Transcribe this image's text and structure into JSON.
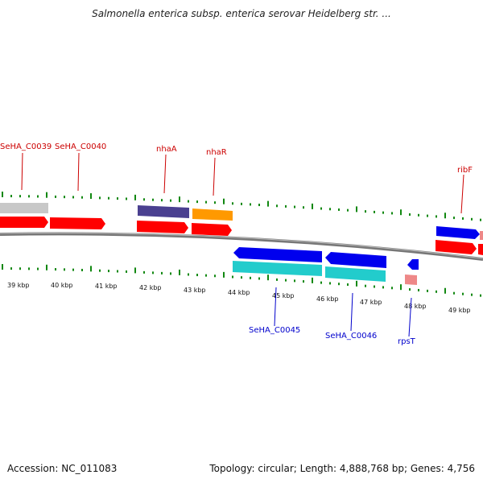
{
  "title": "Salmonella enterica subsp. enterica serovar Heidelberg str. ...",
  "footer": {
    "accession": "Accession: NC_011083",
    "stats": "Topology: circular; Length: 4,888,768 bp; Genes: 4,756"
  },
  "axis": {
    "ticks": [
      {
        "label": "39 kbp"
      },
      {
        "label": "40 kbp"
      },
      {
        "label": "41 kbp"
      },
      {
        "label": "42 kbp"
      },
      {
        "label": "43 kbp"
      },
      {
        "label": "44 kbp"
      },
      {
        "label": "45 kbp"
      },
      {
        "label": "46 kbp"
      },
      {
        "label": "47 kbp"
      },
      {
        "label": "48 kbp"
      },
      {
        "label": "49 kbp"
      }
    ]
  },
  "colors": {
    "forward_label": "#cc0000",
    "reverse_label": "#0000cc",
    "gene_red": "#ff0000",
    "gene_blue": "#0000ee",
    "gene_cyan": "#22cccc",
    "gene_purple": "#4a4090",
    "gene_orange": "#ff9900",
    "gene_pink": "#ee8888",
    "gene_grey": "#c8c8c8",
    "backbone": "#777777",
    "ticks": "#118811"
  },
  "gene_labels": [
    {
      "name": "SeHA_C0039",
      "strand": "forward"
    },
    {
      "name": "SeHA_C0040",
      "strand": "forward"
    },
    {
      "name": "nhaA",
      "strand": "forward"
    },
    {
      "name": "nhaR",
      "strand": "forward"
    },
    {
      "name": "ribF",
      "strand": "forward"
    },
    {
      "name": "SeHA_C0045",
      "strand": "reverse"
    },
    {
      "name": "SeHA_C0046",
      "strand": "reverse"
    },
    {
      "name": "rpsT",
      "strand": "reverse"
    }
  ]
}
